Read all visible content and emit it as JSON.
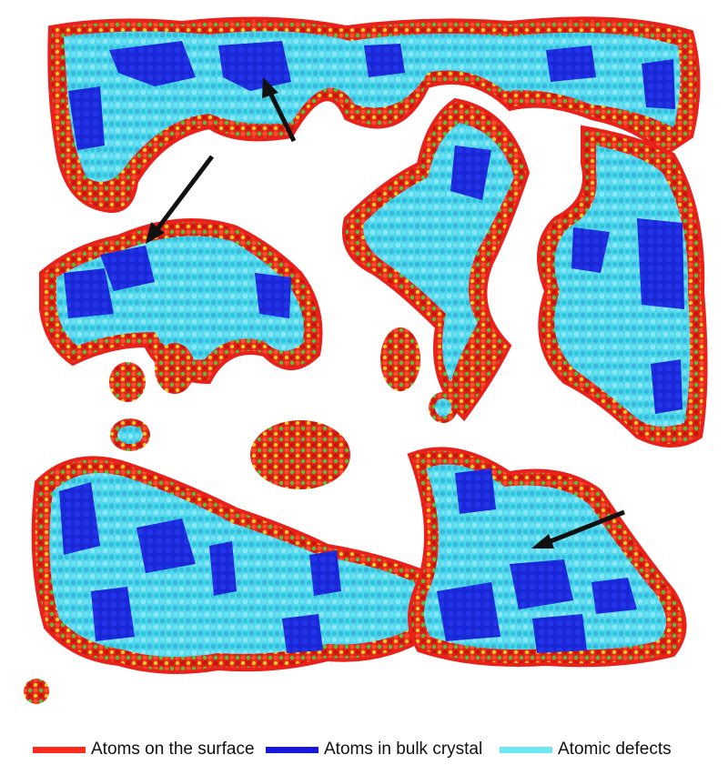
{
  "legend": {
    "items": [
      {
        "label": "Atoms on the surface",
        "color": "#ff2a1a"
      },
      {
        "label": "Atoms in bulk crystal",
        "color": "#1717e0"
      },
      {
        "label": "Atomic defects",
        "color": "#6fe8f5"
      }
    ]
  },
  "colors": {
    "surface": "#e8221a",
    "subsurface_green": "#3fcf3a",
    "subsurface_yellow": "#e5d41e",
    "defect": "#4fd8ee",
    "defect_light": "#8ae6f2",
    "bulk": "#1a27d6",
    "arrow": "#111111"
  },
  "arrows": [
    {
      "label": "arrow-top-center"
    },
    {
      "label": "arrow-left"
    },
    {
      "label": "arrow-lower-right"
    }
  ]
}
